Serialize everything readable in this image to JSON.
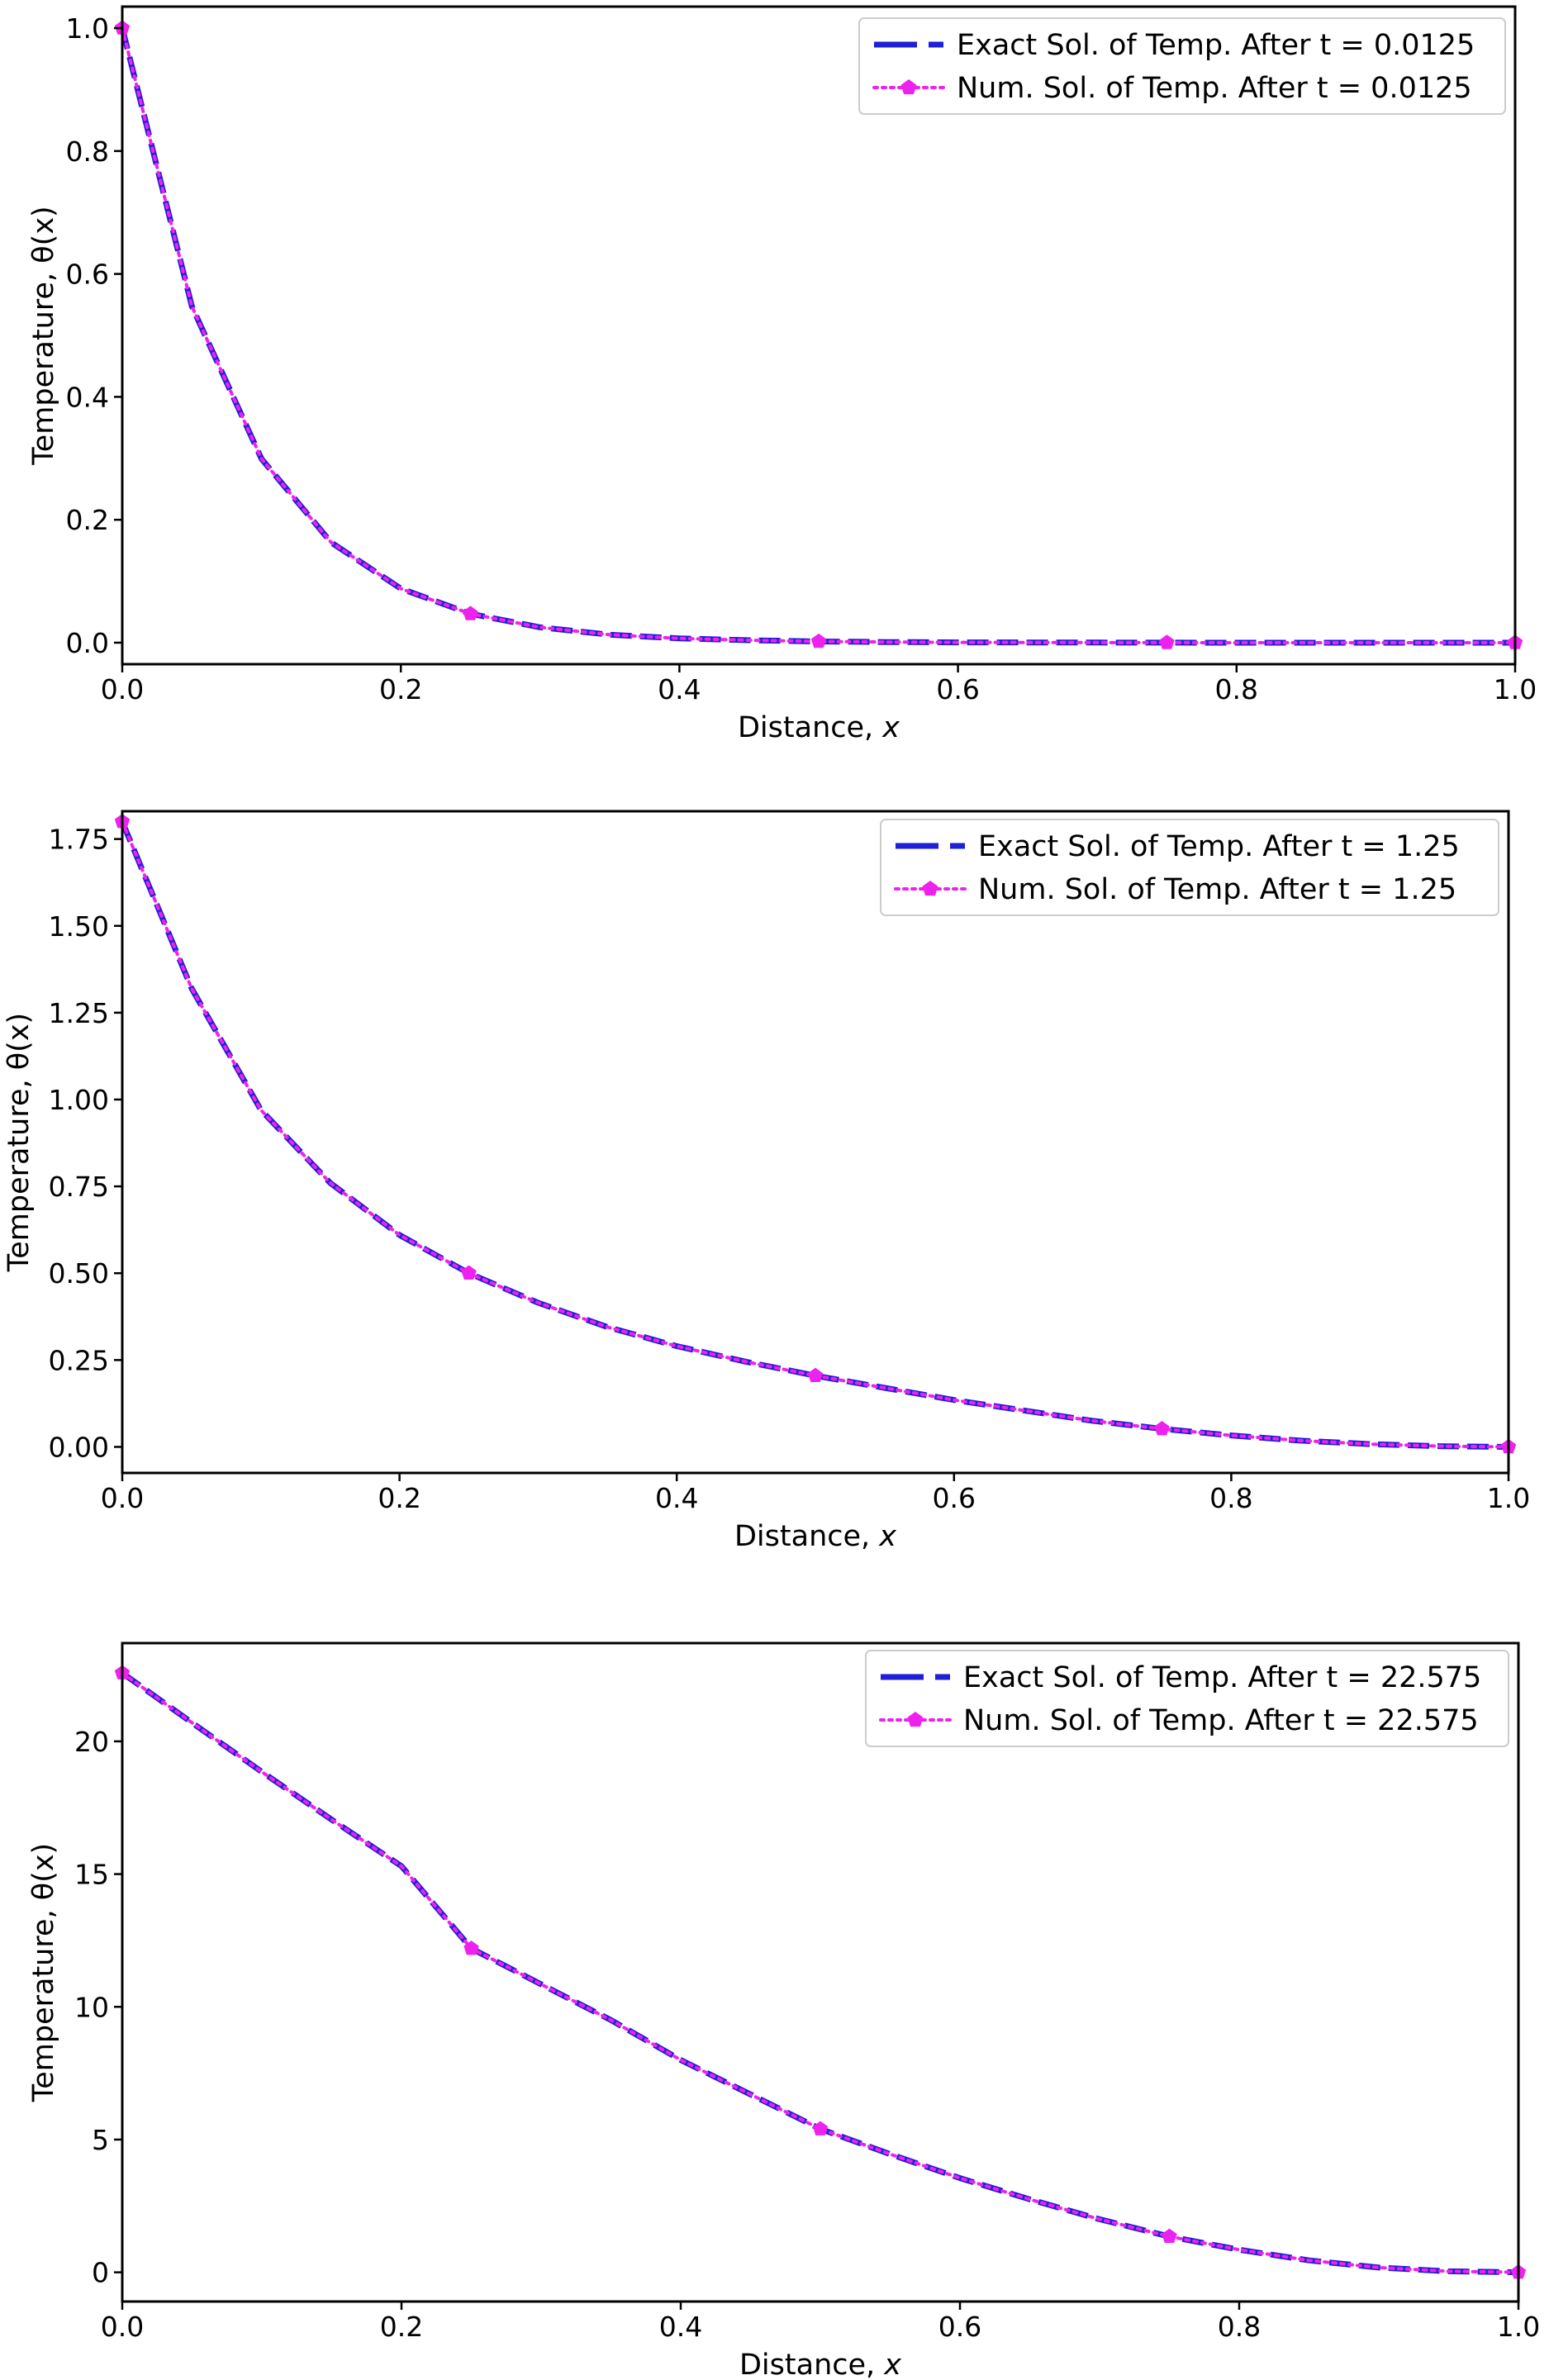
{
  "chart_data": [
    {
      "type": "line",
      "title": "",
      "xlabel": "Distance, ",
      "xlabel_var": "x",
      "ylabel": "Temperature, θ(x)",
      "xlim": [
        0.0,
        1.0
      ],
      "ylim": [
        -0.035,
        1.035
      ],
      "xticks": [
        0.0,
        0.2,
        0.4,
        0.6,
        0.8,
        1.0
      ],
      "xtick_labels": [
        "0.0",
        "0.2",
        "0.4",
        "0.6",
        "0.8",
        "1.0"
      ],
      "yticks": [
        0.0,
        0.2,
        0.4,
        0.6,
        0.8,
        1.0
      ],
      "ytick_labels": [
        "0.0",
        "0.2",
        "0.4",
        "0.6",
        "0.8",
        "1.0"
      ],
      "grid": false,
      "legend_position": "top-right",
      "x": [
        0.0,
        0.05,
        0.1,
        0.15,
        0.2,
        0.25,
        0.3,
        0.35,
        0.4,
        0.45,
        0.5,
        0.55,
        0.6,
        0.65,
        0.7,
        0.75,
        0.8,
        0.85,
        0.9,
        0.95,
        1.0
      ],
      "series": [
        {
          "name": "Exact Sol. of Temp. After t = 0.0125",
          "color": "#1f1fd6",
          "style": "dashed-thick",
          "values": [
            1.0,
            0.547,
            0.299,
            0.163,
            0.088,
            0.047,
            0.025,
            0.013,
            0.007,
            0.004,
            0.002,
            0.001,
            0.0005,
            0.0003,
            0.0002,
            0.0001,
            0.0,
            0.0,
            0.0,
            0.0,
            0.0
          ]
        },
        {
          "name": "Num. Sol. of Temp. After t = 0.0125",
          "color": "#ee22ee",
          "style": "dotted-markers",
          "marker_x": [
            0.0,
            0.25,
            0.5,
            0.75,
            1.0
          ],
          "marker_values": [
            1.0,
            0.047,
            0.002,
            0.0001,
            0.0
          ],
          "values": [
            1.0,
            0.547,
            0.299,
            0.163,
            0.088,
            0.047,
            0.025,
            0.013,
            0.007,
            0.004,
            0.002,
            0.001,
            0.0005,
            0.0003,
            0.0002,
            0.0001,
            0.0,
            0.0,
            0.0,
            0.0,
            0.0
          ]
        }
      ]
    },
    {
      "type": "line",
      "title": "",
      "xlabel": "Distance, ",
      "xlabel_var": "x",
      "ylabel": "Temperature, θ(x)",
      "xlim": [
        0.0,
        1.0
      ],
      "ylim": [
        -0.075,
        1.83
      ],
      "xticks": [
        0.0,
        0.2,
        0.4,
        0.6,
        0.8,
        1.0
      ],
      "xtick_labels": [
        "0.0",
        "0.2",
        "0.4",
        "0.6",
        "0.8",
        "1.0"
      ],
      "yticks": [
        0.0,
        0.25,
        0.5,
        0.75,
        1.0,
        1.25,
        1.5,
        1.75
      ],
      "ytick_labels": [
        "0.00",
        "0.25",
        "0.50",
        "0.75",
        "1.00",
        "1.25",
        "1.50",
        "1.75"
      ],
      "grid": false,
      "legend_position": "top-right",
      "x": [
        0.0,
        0.05,
        0.1,
        0.15,
        0.2,
        0.25,
        0.3,
        0.35,
        0.4,
        0.45,
        0.5,
        0.55,
        0.6,
        0.65,
        0.7,
        0.75,
        0.8,
        0.85,
        0.9,
        0.95,
        1.0
      ],
      "series": [
        {
          "name": "Exact Sol. of Temp. After t = 1.25",
          "color": "#1f1fd6",
          "style": "dashed-thick",
          "values": [
            1.8,
            1.32,
            0.97,
            0.76,
            0.61,
            0.5,
            0.415,
            0.345,
            0.29,
            0.245,
            0.205,
            0.17,
            0.135,
            0.105,
            0.075,
            0.052,
            0.033,
            0.018,
            0.008,
            0.002,
            0.0
          ]
        },
        {
          "name": "Num. Sol. of Temp. After t = 1.25",
          "color": "#ee22ee",
          "style": "dotted-markers",
          "marker_x": [
            0.0,
            0.25,
            0.5,
            0.75,
            1.0
          ],
          "marker_values": [
            1.8,
            0.5,
            0.205,
            0.052,
            0.0
          ],
          "values": [
            1.8,
            1.32,
            0.97,
            0.76,
            0.61,
            0.5,
            0.415,
            0.345,
            0.29,
            0.245,
            0.205,
            0.17,
            0.135,
            0.105,
            0.075,
            0.052,
            0.033,
            0.018,
            0.008,
            0.002,
            0.0
          ]
        }
      ]
    },
    {
      "type": "line",
      "title": "",
      "xlabel": "Distance, ",
      "xlabel_var": "x",
      "ylabel": "Temperature, θ(x)",
      "xlim": [
        0.0,
        1.0
      ],
      "ylim": [
        -1.1,
        23.7
      ],
      "xticks": [
        0.0,
        0.2,
        0.4,
        0.6,
        0.8,
        1.0
      ],
      "xtick_labels": [
        "0.0",
        "0.2",
        "0.4",
        "0.6",
        "0.8",
        "1.0"
      ],
      "yticks": [
        0,
        5,
        10,
        15,
        20
      ],
      "ytick_labels": [
        "0",
        "5",
        "10",
        "15",
        "20"
      ],
      "grid": false,
      "legend_position": "top-right",
      "x": [
        0.0,
        0.05,
        0.1,
        0.15,
        0.2,
        0.25,
        0.3,
        0.35,
        0.4,
        0.45,
        0.5,
        0.55,
        0.6,
        0.65,
        0.7,
        0.75,
        0.8,
        0.85,
        0.9,
        0.95,
        1.0
      ],
      "series": [
        {
          "name": "Exact Sol. of Temp. After t = 22.575",
          "color": "#1f1fd6",
          "style": "dashed-thick",
          "values": [
            22.575,
            20.7,
            18.85,
            17.05,
            15.3,
            12.2,
            10.85,
            9.5,
            8.0,
            6.7,
            5.4,
            4.45,
            3.55,
            2.75,
            2.0,
            1.35,
            0.85,
            0.45,
            0.18,
            0.04,
            0.0
          ]
        },
        {
          "name": "Num. Sol. of Temp. After t = 22.575",
          "color": "#ee22ee",
          "style": "dotted-markers",
          "marker_x": [
            0.0,
            0.25,
            0.5,
            0.75,
            1.0
          ],
          "marker_values": [
            22.575,
            12.2,
            5.4,
            1.35,
            0.0
          ],
          "values": [
            22.575,
            20.7,
            18.85,
            17.05,
            15.3,
            12.2,
            10.85,
            9.5,
            8.0,
            6.7,
            5.4,
            4.45,
            3.55,
            2.75,
            2.0,
            1.35,
            0.85,
            0.45,
            0.18,
            0.04,
            0.0
          ]
        }
      ]
    }
  ]
}
